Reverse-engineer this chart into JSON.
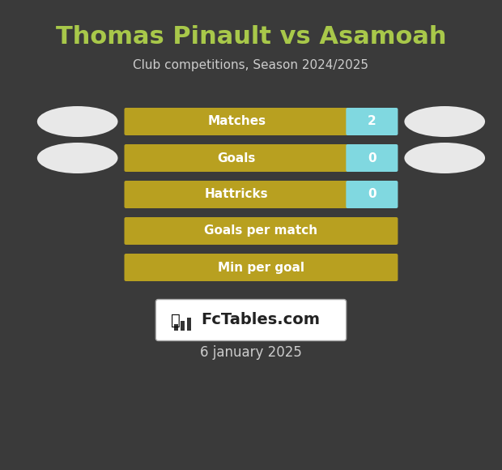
{
  "title": "Thomas Pinault vs Asamoah",
  "subtitle": "Club competitions, Season 2024/2025",
  "date": "6 january 2025",
  "background_color": "#3a3a3a",
  "title_color": "#a8c84a",
  "subtitle_color": "#cccccc",
  "date_color": "#cccccc",
  "rows": [
    {
      "label": "Matches",
      "value": "2",
      "has_value": true
    },
    {
      "label": "Goals",
      "value": "0",
      "has_value": true
    },
    {
      "label": "Hattricks",
      "value": "0",
      "has_value": true
    },
    {
      "label": "Goals per match",
      "value": "",
      "has_value": false
    },
    {
      "label": "Min per goal",
      "value": "",
      "has_value": false
    }
  ],
  "bar_color_gold": "#b8a020",
  "bar_color_cyan": "#80d8e0",
  "ellipse_color": "#e8e8e8",
  "bar_text_color": "#ffffff",
  "value_text_color": "#ffffff",
  "fctables_bg": "#ffffff",
  "fctables_border": "#aaaaaa",
  "fctables_text": "FcTables.com"
}
